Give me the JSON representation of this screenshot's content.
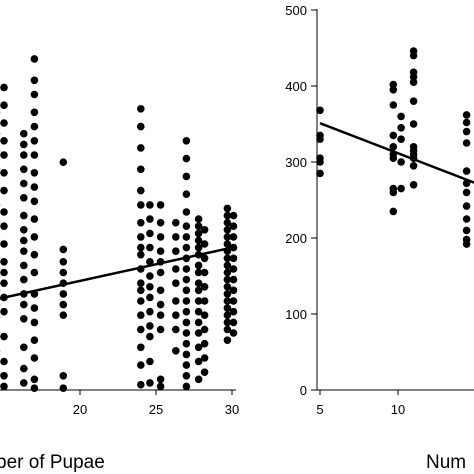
{
  "chart_data": [
    {
      "type": "scatter",
      "xlabel": "ber of Pupae",
      "x_ticks": [
        "20",
        "25",
        "30"
      ],
      "y_ticks": [],
      "xlim": [
        14.5,
        30.5
      ],
      "ylim": [
        0,
        1000
      ],
      "trendline": {
        "x": [
          14.5,
          30
        ],
        "y": [
          255,
          400
        ]
      },
      "columns": [
        {
          "x": 14.5,
          "y": [
            15,
            45,
            110,
            160,
            205,
            240,
            280,
            300,
            320,
            340,
            370,
            420,
            470,
            520,
            570,
            620,
            670,
            720,
            780
          ]
        },
        {
          "x": 15.0,
          "y": [
            10,
            40,
            80,
            150,
            220,
            260,
            300,
            330,
            360,
            410,
            460,
            500,
            560,
            610,
            660,
            700,
            750,
            800,
            850
          ]
        },
        {
          "x": 16.3,
          "y": [
            20,
            60,
            120,
            200,
            240,
            270,
            310,
            350,
            390,
            420,
            450,
            490,
            540,
            580,
            620,
            660,
            690,
            720
          ]
        },
        {
          "x": 17.0,
          "y": [
            5,
            30,
            90,
            140,
            190,
            230,
            270,
            330,
            380,
            430,
            480,
            530,
            570,
            610,
            660,
            700,
            740,
            780,
            830,
            870,
            930
          ]
        },
        {
          "x": 18.9,
          "y": [
            5,
            40,
            210,
            240,
            270,
            300,
            330,
            360,
            395,
            640
          ]
        },
        {
          "x": 24.0,
          "y": [
            15,
            70,
            120,
            170,
            210,
            250,
            280,
            300,
            340,
            380,
            400,
            430,
            470,
            520,
            560,
            620,
            680,
            740,
            790
          ]
        },
        {
          "x": 24.6,
          "y": [
            20,
            80,
            150,
            180,
            220,
            260,
            290,
            320,
            360,
            400,
            440,
            480,
            520
          ]
        },
        {
          "x": 25.3,
          "y": [
            10,
            30,
            170,
            210,
            240,
            280,
            330,
            360,
            390,
            430,
            470,
            520
          ]
        },
        {
          "x": 26.3,
          "y": [
            110,
            170,
            210,
            250,
            300,
            340,
            390,
            430,
            470
          ]
        },
        {
          "x": 27.0,
          "y": [
            10,
            40,
            70,
            100,
            130,
            160,
            190,
            220,
            250,
            280,
            310,
            340,
            370,
            400,
            430,
            460,
            500,
            550,
            600,
            650,
            700
          ]
        },
        {
          "x": 27.8,
          "y": [
            30,
            80,
            120,
            160,
            190,
            220,
            250,
            280,
            300,
            330,
            350,
            380,
            400,
            420,
            440,
            460,
            480
          ]
        },
        {
          "x": 28.2,
          "y": [
            50,
            90,
            130,
            170,
            210,
            250,
            290,
            330,
            370,
            410,
            450
          ]
        },
        {
          "x": 29.7,
          "y": [
            140,
            170,
            190,
            210,
            230,
            250,
            270,
            290,
            310,
            330,
            350,
            370,
            390,
            410,
            430,
            450,
            470,
            490,
            510
          ]
        },
        {
          "x": 30.1,
          "y": [
            160,
            190,
            220,
            250,
            280,
            310,
            340,
            370,
            400,
            430,
            460,
            490
          ]
        }
      ]
    },
    {
      "type": "scatter",
      "xlabel": "Num",
      "x_ticks": [
        "5",
        "10"
      ],
      "y_ticks": [
        "0",
        "100",
        "200",
        "300",
        "400",
        "500"
      ],
      "xlim": [
        4.3,
        15.5
      ],
      "ylim": [
        0,
        500
      ],
      "trendline": {
        "x": [
          5,
          15
        ],
        "y": [
          351,
          272
        ]
      },
      "columns": [
        {
          "x": 5.0,
          "y": [
            285,
            300,
            305,
            330,
            335,
            368
          ]
        },
        {
          "x": 9.7,
          "y": [
            235,
            260,
            265,
            305,
            310,
            320,
            335,
            375,
            395,
            402
          ]
        },
        {
          "x": 10.2,
          "y": [
            265,
            300,
            330,
            345,
            360
          ]
        },
        {
          "x": 11.0,
          "y": [
            270,
            295,
            305,
            310,
            315,
            320,
            350,
            380,
            405,
            412,
            418,
            440,
            446
          ]
        },
        {
          "x": 14.4,
          "y": [
            192,
            198,
            210,
            225,
            242,
            260,
            272,
            288,
            325,
            340,
            352,
            362
          ]
        }
      ]
    }
  ]
}
